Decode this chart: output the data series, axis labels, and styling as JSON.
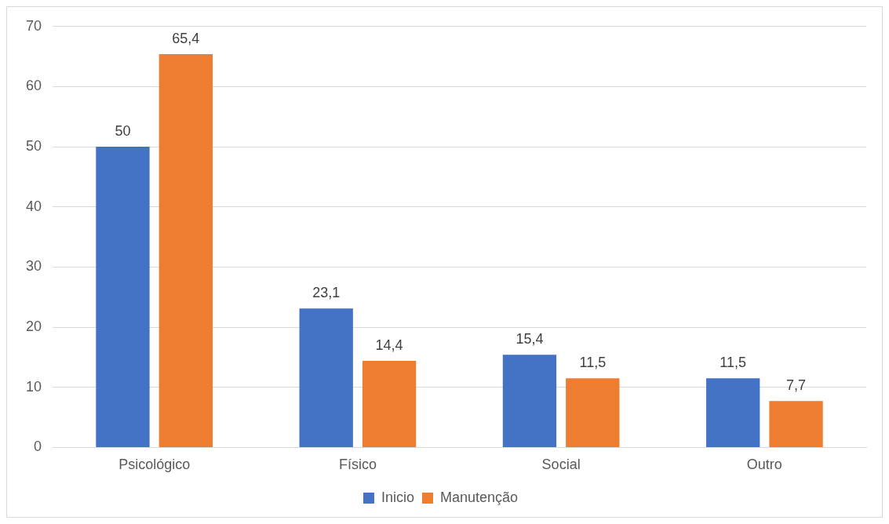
{
  "chart_data": {
    "type": "bar",
    "categories": [
      "Psicológico",
      "Físico",
      "Social",
      "Outro"
    ],
    "series": [
      {
        "name": "Inicio",
        "color": "#4472c4",
        "values": [
          50,
          23.1,
          15.4,
          11.5
        ],
        "value_labels": [
          "50",
          "23,1",
          "15,4",
          "11,5"
        ]
      },
      {
        "name": "Manutenção",
        "color": "#ed7d31",
        "values": [
          65.4,
          14.4,
          11.5,
          7.7
        ],
        "value_labels": [
          "65,4",
          "14,4",
          "11,5",
          "7,7"
        ]
      }
    ],
    "ylim": [
      0,
      70
    ],
    "yticks": [
      0,
      10,
      20,
      30,
      40,
      50,
      60,
      70
    ],
    "grid": "y",
    "legend": "bottom"
  }
}
